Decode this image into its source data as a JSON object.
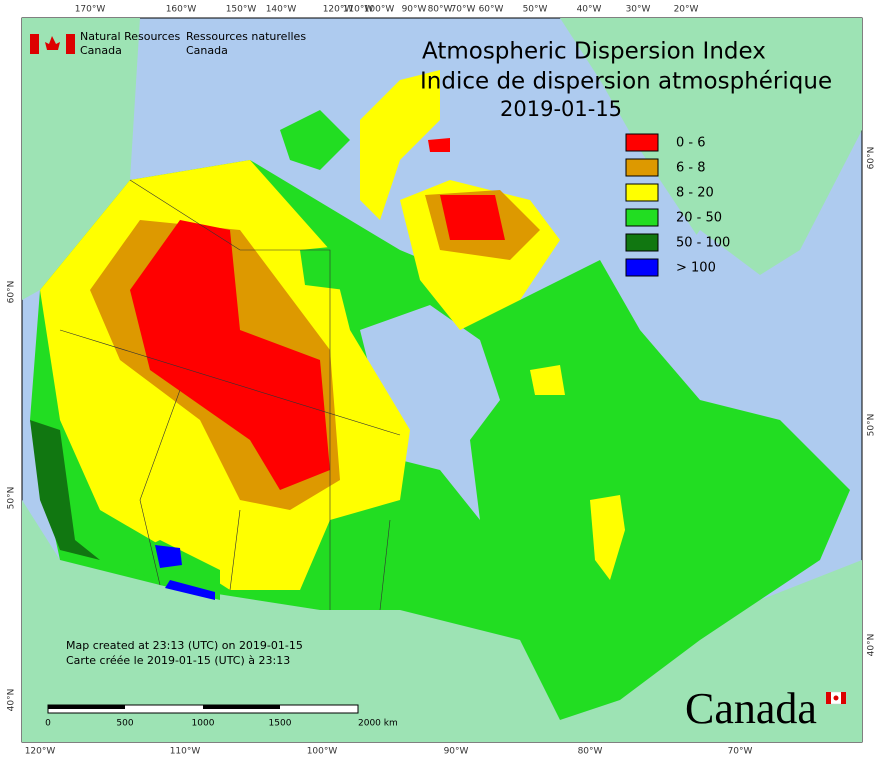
{
  "header": {
    "agency_en": "Natural Resources",
    "country_en": "Canada",
    "agency_fr": "Ressources naturelles",
    "country_fr": "Canada"
  },
  "title": {
    "line1": "Atmospheric Dispersion Index",
    "line2": "Indice de dispersion atmosphérique",
    "date": "2019-01-15"
  },
  "legend": [
    {
      "label": "0 - 6",
      "color": "#ff0000"
    },
    {
      "label": "6 - 8",
      "color": "#dd9900"
    },
    {
      "label": "8 - 20",
      "color": "#ffff00"
    },
    {
      "label": "20 - 50",
      "color": "#22dd22"
    },
    {
      "label": "50 - 100",
      "color": "#117711"
    },
    {
      "label": "> 100",
      "color": "#0000ff"
    }
  ],
  "credits": {
    "line1": "Map created at 23:13 (UTC) on 2019-01-15",
    "line2": "Carte créée le 2019-01-15 (UTC) à 23:13"
  },
  "scale_bar": [
    "0",
    "500",
    "1000",
    "1500",
    "2000  km"
  ],
  "wordmark": "Canada",
  "graticule": {
    "top": [
      "170°W",
      "160°W",
      "150°W",
      "140°W",
      "120°W",
      "110°W",
      "100°W",
      "90°W",
      "80°W",
      "70°W",
      "60°W",
      "50°W",
      "40°W",
      "30°W",
      "20°W"
    ],
    "bottom": [
      "120°W",
      "110°W",
      "100°W",
      "90°W",
      "80°W",
      "70°W"
    ],
    "left": [
      "60°N",
      "50°N",
      "40°N"
    ],
    "right": [
      "60°N",
      "50°N",
      "40°N"
    ]
  }
}
